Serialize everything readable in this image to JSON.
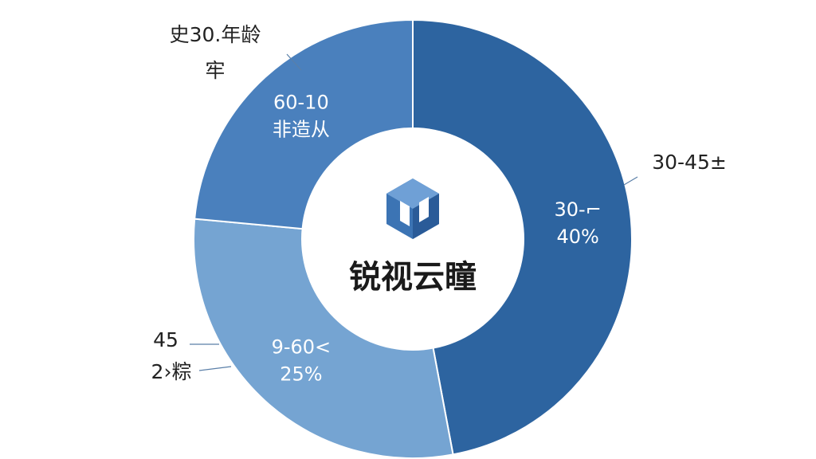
{
  "chart_data": {
    "type": "donut",
    "center_text": "锐视云瞳",
    "values": [
      40,
      25,
      20
    ],
    "value_labels": [
      "40%",
      "25%",
      null
    ],
    "inner_labels": [
      [
        "30-⌐"
      ],
      [
        "9-60<"
      ],
      [
        "60-10",
        "非造从"
      ]
    ],
    "outer_labels": [
      [
        "30-45±"
      ],
      [
        "45",
        "2›粽"
      ],
      [
        "史30.年龄",
        "牢"
      ]
    ],
    "colors": [
      "#2d64a0",
      "#75a4d2",
      "#4a80bd"
    ]
  }
}
